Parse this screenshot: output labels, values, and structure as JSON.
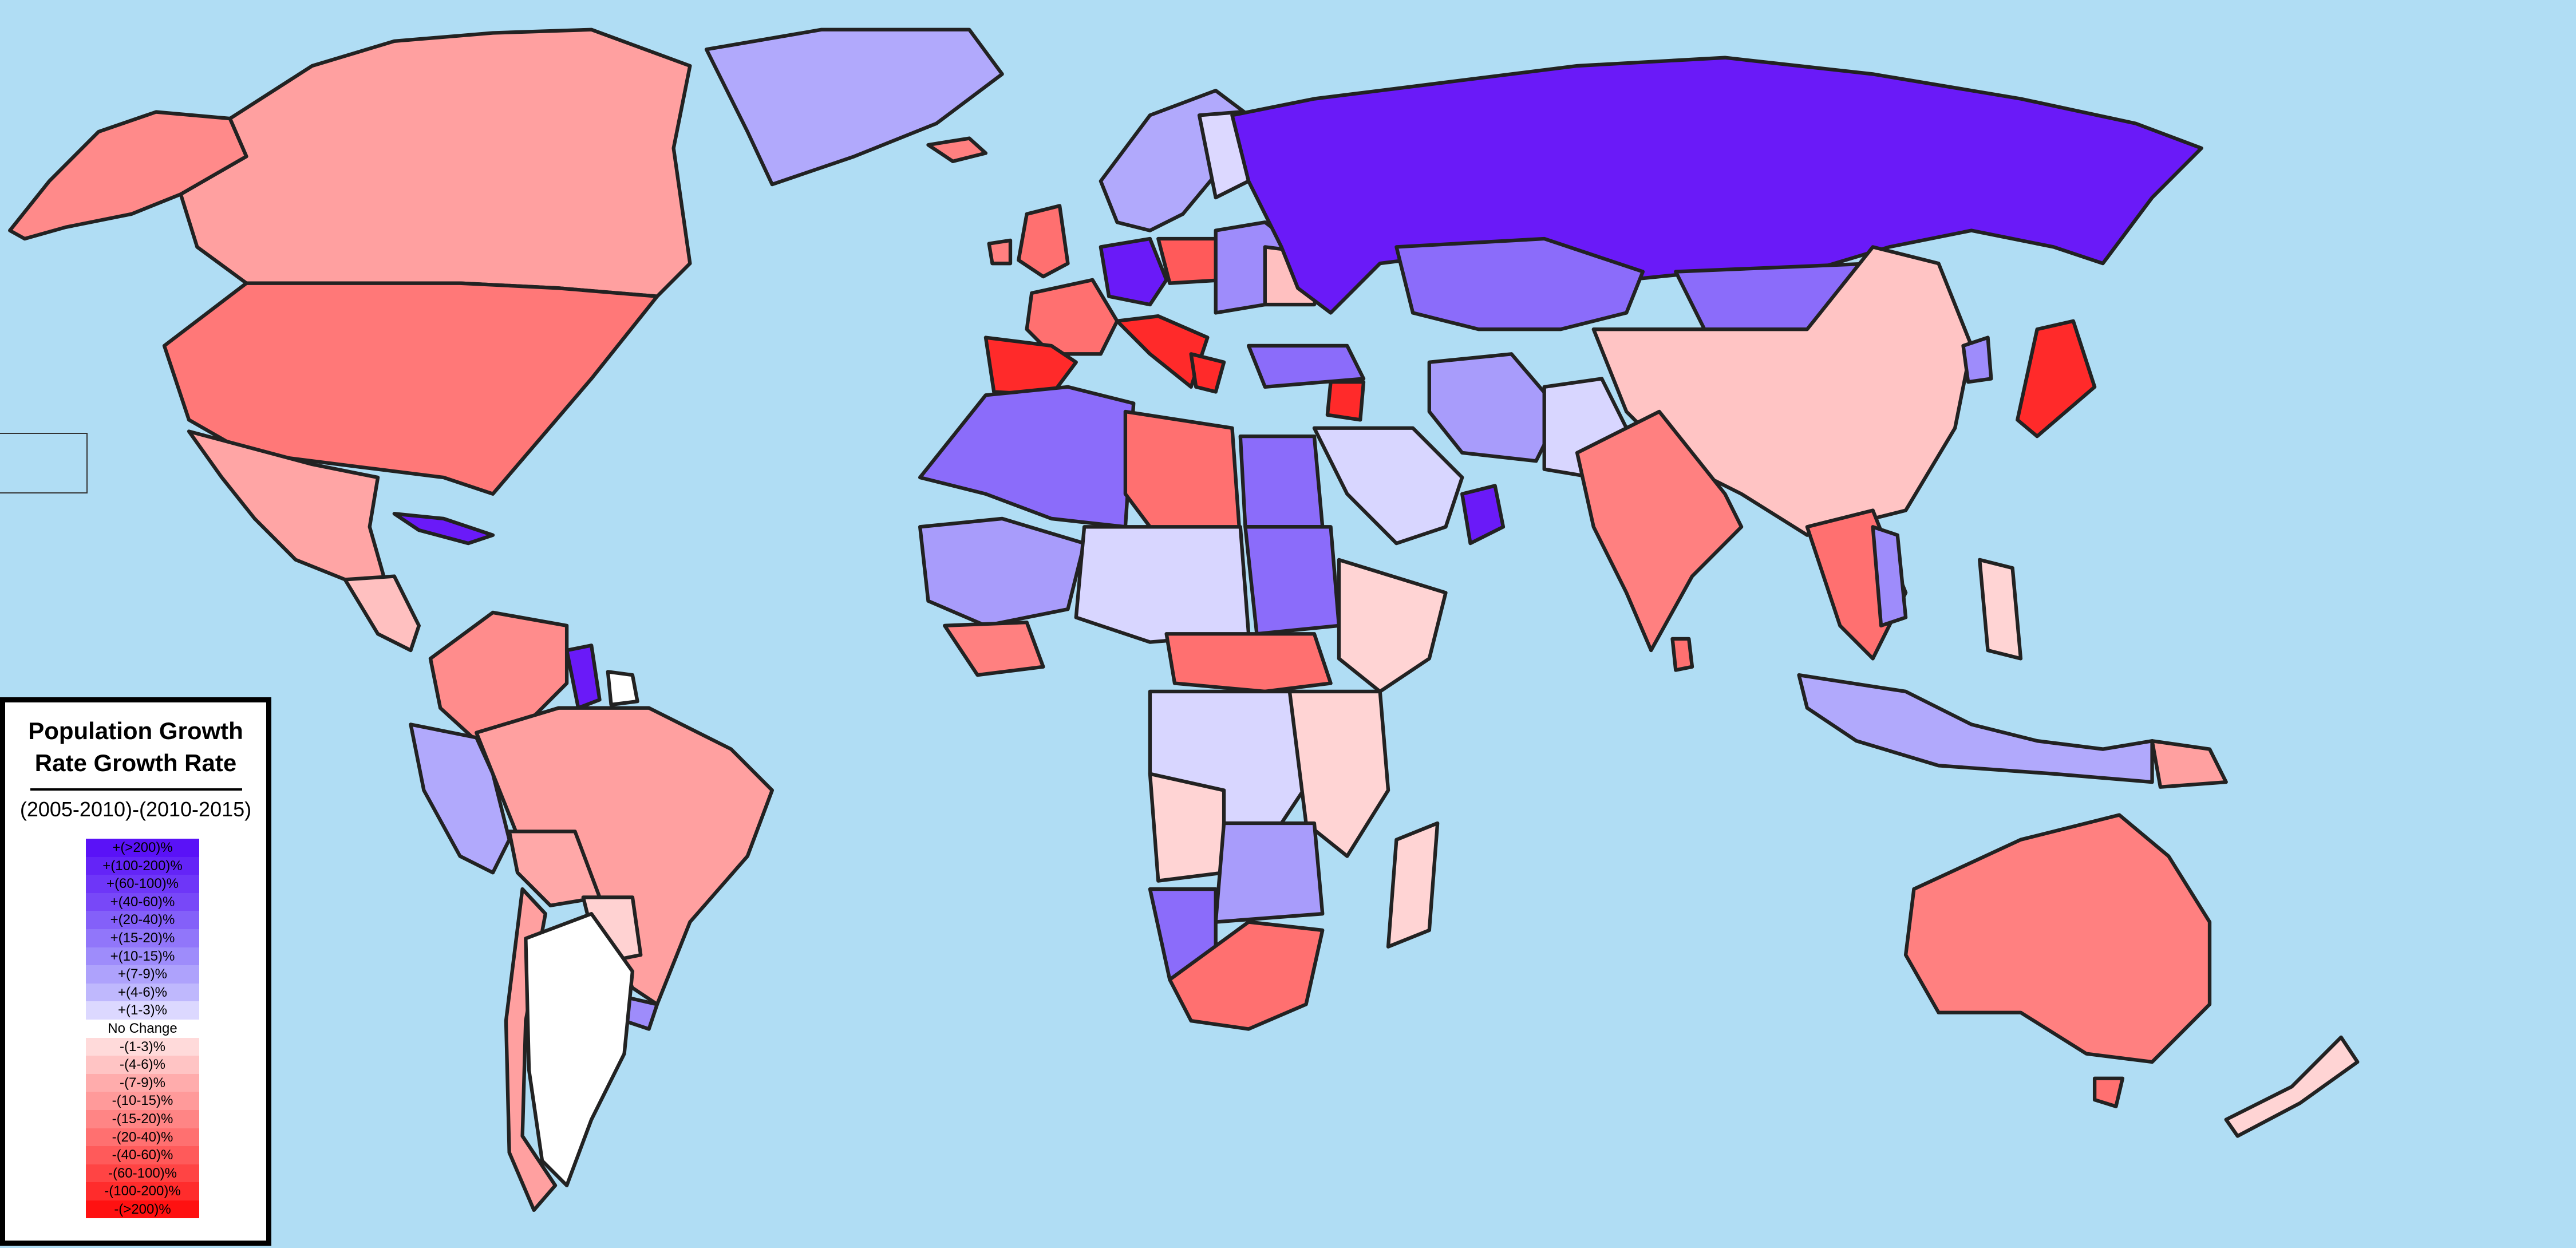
{
  "legend": {
    "title_line1": "Population Growth",
    "title_line2": "Rate Growth Rate",
    "subtitle": "(2005-2010)-(2010-2015)",
    "scale": [
      {
        "label": "+(>200)%",
        "color": "#5a12f7"
      },
      {
        "label": "+(100-200)%",
        "color": "#6424f7"
      },
      {
        "label": "+(60-100)%",
        "color": "#6e36f8"
      },
      {
        "label": "+(40-60)%",
        "color": "#7848f8"
      },
      {
        "label": "+(20-40)%",
        "color": "#8460f9"
      },
      {
        "label": "+(15-20)%",
        "color": "#9176fa"
      },
      {
        "label": "+(10-15)%",
        "color": "#9e8cfb"
      },
      {
        "label": "+(7-9)%",
        "color": "#aea2fc"
      },
      {
        "label": "+(4-6)%",
        "color": "#bfb8fd"
      },
      {
        "label": "+(1-3)%",
        "color": "#dcd8ff"
      },
      {
        "label": "No Change",
        "color": "#ffffff"
      },
      {
        "label": "-(1-3)%",
        "color": "#ffdada"
      },
      {
        "label": "-(4-6)%",
        "color": "#ffc4c4"
      },
      {
        "label": "-(7-9)%",
        "color": "#ffacac"
      },
      {
        "label": "-(10-15)%",
        "color": "#ff9a9a"
      },
      {
        "label": "-(15-20)%",
        "color": "#ff8585"
      },
      {
        "label": "-(20-40)%",
        "color": "#ff7070"
      },
      {
        "label": "-(40-60)%",
        "color": "#ff5a5a"
      },
      {
        "label": "-(60-100)%",
        "color": "#ff4444"
      },
      {
        "label": "-(100-200)%",
        "color": "#ff2c2c"
      },
      {
        "label": "-(>200)%",
        "color": "#ff1111"
      }
    ]
  },
  "colors": {
    "ocean": "#b0ddf4",
    "strong_blue": "#6a1af8",
    "mid_blue": "#8b6cfa",
    "light_blue": "#a89cfb",
    "pale_blue": "#d8d6ff",
    "white": "#ffffff",
    "pale_red": "#ffd4d4",
    "light_red": "#ffa0a0",
    "mid_red": "#ff8080",
    "strong_red": "#ff2a2a"
  }
}
